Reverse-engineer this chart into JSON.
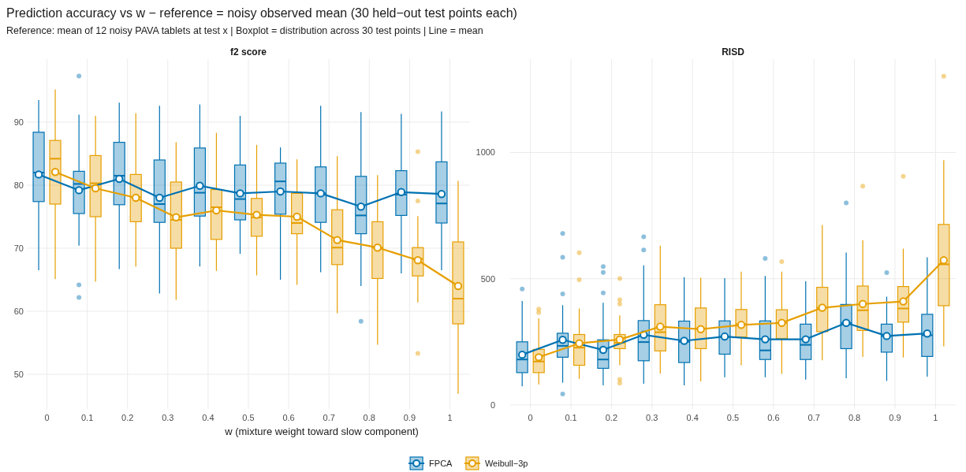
{
  "chart_data": [
    {
      "type": "box",
      "title": "f2 score",
      "annotations": [
        "Prediction accuracy vs w − reference = noisy observed mean  (30 held−out test points each)",
        "Reference: mean of 12 noisy PAVA tablets at test x | Boxplot = distribution across 30 test points | Line = mean"
      ],
      "xlabel": "w  (mixture weight toward slow component)",
      "categories": [
        "0",
        "0.1",
        "0.2",
        "0.3",
        "0.4",
        "0.5",
        "0.6",
        "0.7",
        "0.8",
        "0.9",
        "1"
      ],
      "ylim": [
        44.5,
        100
      ],
      "yticks": [
        50,
        60,
        70,
        80,
        90
      ],
      "grid": true,
      "legend": "bottom",
      "marker": "circle",
      "series": [
        {
          "name": "FPCA",
          "color": "#0072b2",
          "boxes": [
            {
              "low": 66.5,
              "q1": 77.4,
              "median": 82.0,
              "q3": 88.4,
              "high": 93.5
            },
            {
              "low": 70.4,
              "q1": 75.5,
              "median": 80.2,
              "q3": 82.2,
              "high": 91.2,
              "outliers": [
                97.3,
                64.2,
                62.2
              ]
            },
            {
              "low": 66.7,
              "q1": 76.9,
              "median": 81.5,
              "q3": 86.8,
              "high": 93.1
            },
            {
              "low": 62.8,
              "q1": 74.1,
              "median": 77.0,
              "q3": 84.0,
              "high": 92.6
            },
            {
              "low": 67.1,
              "q1": 75.1,
              "median": 78.8,
              "q3": 85.9,
              "high": 92.8
            },
            {
              "low": 69.1,
              "q1": 74.5,
              "median": 77.8,
              "q3": 83.2,
              "high": 91.0
            },
            {
              "low": 65.0,
              "q1": 75.4,
              "median": 80.6,
              "q3": 83.5,
              "high": 86.0
            },
            {
              "low": 66.2,
              "q1": 74.1,
              "median": 78.7,
              "q3": 82.9,
              "high": 92.6
            },
            {
              "low": 64.0,
              "q1": 72.3,
              "median": 75.2,
              "q3": 81.4,
              "high": 91.6,
              "outliers": [
                58.4
              ]
            },
            {
              "low": 66.0,
              "q1": 75.2,
              "median": 78.5,
              "q3": 82.3,
              "high": 91.3
            },
            {
              "low": 66.5,
              "q1": 74.0,
              "median": 77.1,
              "q3": 83.7,
              "high": 91.7
            }
          ]
        },
        {
          "name": "Weibull−3p",
          "color": "#e69f00",
          "boxes": [
            {
              "low": 65.1,
              "q1": 77.0,
              "median": 84.2,
              "q3": 87.1,
              "high": 95.2
            },
            {
              "low": 64.7,
              "q1": 75.0,
              "median": 80.3,
              "q3": 84.7,
              "high": 91.0
            },
            {
              "low": 67.1,
              "q1": 74.2,
              "median": 78.1,
              "q3": 81.7,
              "high": 91.4
            },
            {
              "low": 61.8,
              "q1": 70.0,
              "median": 74.5,
              "q3": 80.5,
              "high": 86.8
            },
            {
              "low": 66.4,
              "q1": 71.4,
              "median": 76.5,
              "q3": 79.3,
              "high": 88.3
            },
            {
              "low": 65.7,
              "q1": 71.9,
              "median": 74.9,
              "q3": 77.9,
              "high": 86.4
            },
            {
              "low": 64.2,
              "q1": 72.3,
              "median": 74.0,
              "q3": 78.7,
              "high": 84.1
            },
            {
              "low": 59.7,
              "q1": 67.4,
              "median": 70.1,
              "q3": 76.1,
              "high": 84.6
            },
            {
              "low": 54.7,
              "q1": 65.2,
              "median": 70.1,
              "q3": 74.2,
              "high": 81.6
            },
            {
              "low": 61.4,
              "q1": 65.6,
              "median": 68.3,
              "q3": 70.1,
              "high": 75.1,
              "outliers": [
                85.3,
                77.5,
                53.3
              ]
            },
            {
              "low": 46.9,
              "q1": 58.0,
              "median": 62.0,
              "q3": 71.0,
              "high": 80.7
            }
          ]
        },
        {
          "type": "line",
          "color": "#0072b2",
          "values": [
            81.7,
            79.2,
            81.0,
            78.0,
            79.9,
            78.7,
            79.0,
            78.7,
            76.6,
            78.9,
            78.6
          ]
        },
        {
          "type": "line",
          "color": "#e69f00",
          "values": [
            82.1,
            79.5,
            78.0,
            74.9,
            76.0,
            75.3,
            75.0,
            71.3,
            70.1,
            68.1,
            64.0
          ]
        }
      ]
    },
    {
      "type": "box",
      "title": "RISD",
      "categories": [
        "0",
        "0.1",
        "0.2",
        "0.3",
        "0.4",
        "0.5",
        "0.6",
        "0.7",
        "0.8",
        "0.9",
        "1"
      ],
      "ylim": [
        -16,
        1370
      ],
      "yticks": [
        0,
        500,
        1000
      ],
      "grid": true,
      "marker": "circle",
      "series": [
        {
          "color": "#0072b2",
          "boxes": [
            {
              "low": 74,
              "q1": 128,
              "median": 180,
              "q3": 250,
              "high": 412,
              "outliers": [
                459
              ]
            },
            {
              "low": 88,
              "q1": 189,
              "median": 234,
              "q3": 284,
              "high": 395,
              "outliers": [
                679,
                585,
                440,
                43
              ]
            },
            {
              "low": 78,
              "q1": 145,
              "median": 180,
              "q3": 258,
              "high": 405,
              "outliers": [
                548,
                525,
                444
              ]
            },
            {
              "low": 84,
              "q1": 175,
              "median": 249,
              "q3": 334,
              "high": 553,
              "outliers": [
                666,
                614
              ]
            },
            {
              "low": 78,
              "q1": 168,
              "median": 250,
              "q3": 332,
              "high": 506
            },
            {
              "low": 110,
              "q1": 201,
              "median": 270,
              "q3": 333,
              "high": 502
            },
            {
              "low": 110,
              "q1": 180,
              "median": 216,
              "q3": 333,
              "high": 511,
              "outliers": [
                580
              ]
            },
            {
              "low": 100,
              "q1": 180,
              "median": 238,
              "q3": 320,
              "high": 490
            },
            {
              "low": 106,
              "q1": 223,
              "median": 325,
              "q3": 398,
              "high": 604,
              "outliers": [
                800
              ]
            },
            {
              "low": 95,
              "q1": 209,
              "median": 273,
              "q3": 320,
              "high": 429,
              "outliers": [
                524
              ]
            },
            {
              "low": 112,
              "q1": 192,
              "median": 276,
              "q3": 359,
              "high": 585
            }
          ]
        },
        {
          "color": "#e69f00",
          "boxes": [
            {
              "low": 81,
              "q1": 128,
              "median": 172,
              "q3": 220,
              "high": 343,
              "outliers": [
                380,
                366
              ]
            },
            {
              "low": 103,
              "q1": 157,
              "median": 227,
              "q3": 279,
              "high": 382,
              "outliers": [
                603,
                496
              ]
            },
            {
              "low": 157,
              "q1": 223,
              "median": 246,
              "q3": 279,
              "high": 355,
              "outliers": [
                501,
                416,
                400,
                101,
                86
              ]
            },
            {
              "low": 124,
              "q1": 214,
              "median": 288,
              "q3": 397,
              "high": 631
            },
            {
              "low": 93,
              "q1": 223,
              "median": 303,
              "q3": 384,
              "high": 504
            },
            {
              "low": 157,
              "q1": 269,
              "median": 320,
              "q3": 378,
              "high": 528
            },
            {
              "low": 123,
              "q1": 263,
              "median": 325,
              "q3": 377,
              "high": 528,
              "outliers": [
                568
              ]
            },
            {
              "low": 177,
              "q1": 290,
              "median": 385,
              "q3": 466,
              "high": 713
            },
            {
              "low": 190,
              "q1": 295,
              "median": 375,
              "q3": 471,
              "high": 653,
              "outliers": [
                867
              ]
            },
            {
              "low": 188,
              "q1": 328,
              "median": 382,
              "q3": 469,
              "high": 619,
              "outliers": [
                906
              ]
            },
            {
              "low": 232,
              "q1": 393,
              "median": 557,
              "q3": 715,
              "high": 970,
              "outliers": [
                1302
              ]
            }
          ]
        },
        {
          "type": "line",
          "color": "#0072b2",
          "values": [
            199,
            258,
            218,
            278,
            254,
            271,
            260,
            260,
            325,
            273,
            283
          ]
        },
        {
          "type": "line",
          "color": "#e69f00",
          "values": [
            189,
            244,
            259,
            310,
            300,
            317,
            325,
            385,
            400,
            410,
            573
          ]
        }
      ]
    }
  ]
}
